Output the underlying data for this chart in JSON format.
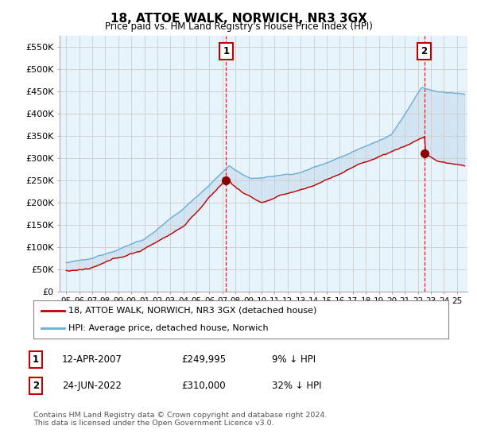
{
  "title": "18, ATTOE WALK, NORWICH, NR3 3GX",
  "subtitle": "Price paid vs. HM Land Registry's House Price Index (HPI)",
  "ylim": [
    0,
    575000
  ],
  "yticks": [
    0,
    50000,
    100000,
    150000,
    200000,
    250000,
    300000,
    350000,
    400000,
    450000,
    500000,
    550000
  ],
  "sale1_date_num": 2007.28,
  "sale1_price": 249995,
  "sale1_label": "1",
  "sale2_date_num": 2022.48,
  "sale2_price": 310000,
  "sale2_label": "2",
  "hpi_line_color": "#6baed6",
  "hpi_fill_color": "#c6dbef",
  "sale_line_color": "#c00000",
  "sale_marker_color": "#8b0000",
  "annotation_box_color": "#c00000",
  "grid_color": "#cccccc",
  "background_color": "#ffffff",
  "legend_entry1": "18, ATTOE WALK, NORWICH, NR3 3GX (detached house)",
  "legend_entry2": "HPI: Average price, detached house, Norwich",
  "table_row1": [
    "1",
    "12-APR-2007",
    "£249,995",
    "9% ↓ HPI"
  ],
  "table_row2": [
    "2",
    "24-JUN-2022",
    "£310,000",
    "32% ↓ HPI"
  ],
  "footnote": "Contains HM Land Registry data © Crown copyright and database right 2024.\nThis data is licensed under the Open Government Licence v3.0.",
  "xmin": 1994.5,
  "xmax": 2025.8
}
